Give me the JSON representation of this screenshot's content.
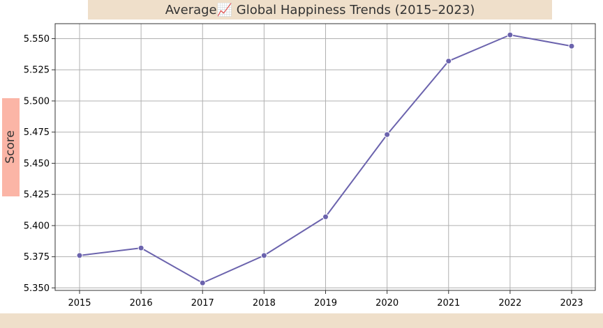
{
  "chart_data": {
    "type": "line",
    "title": "Average📈 Global Happiness Trends (2015–2023)",
    "xlabel": "",
    "ylabel": "Score",
    "x": [
      2015,
      2016,
      2017,
      2018,
      2019,
      2020,
      2021,
      2022,
      2023
    ],
    "series": [
      {
        "name": "",
        "values": [
          5.376,
          5.382,
          5.354,
          5.376,
          5.407,
          5.473,
          5.532,
          5.553,
          5.544
        ]
      }
    ],
    "ylim": [
      5.348,
      5.562
    ],
    "yticks": [
      5.35,
      5.375,
      5.4,
      5.425,
      5.45,
      5.475,
      5.5,
      5.525,
      5.55
    ],
    "ytick_labels": [
      "5.350",
      "5.375",
      "5.400",
      "5.425",
      "5.450",
      "5.475",
      "5.500",
      "5.525",
      "5.550"
    ],
    "xticks": [
      2015,
      2016,
      2017,
      2018,
      2019,
      2020,
      2021,
      2022,
      2023
    ],
    "xtick_labels": [
      "2015",
      "2016",
      "2017",
      "2018",
      "2019",
      "2020",
      "2021",
      "2022",
      "2023"
    ],
    "grid": true,
    "legend": "none",
    "colors": {
      "line": "#6b63ad",
      "marker": "#6b63ad",
      "grid": "#b0b0b0",
      "title_band": "#efdfca",
      "ylabel_band": "#fbb5a6",
      "bottom_band": "#efdfca"
    }
  }
}
